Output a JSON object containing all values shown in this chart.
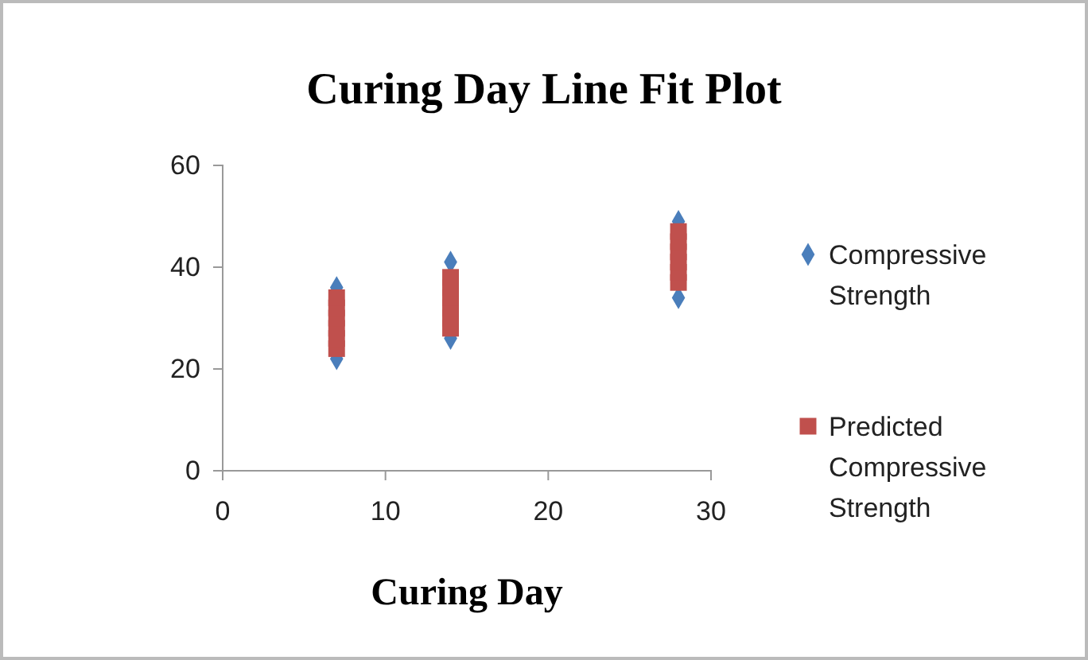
{
  "chart_data": {
    "type": "scatter",
    "title": "Curing Day Line Fit Plot",
    "xlabel": "Curing Day",
    "xlim": [
      0,
      30
    ],
    "xticks": [
      0,
      10,
      20,
      30
    ],
    "ylim": [
      0,
      60
    ],
    "yticks": [
      0,
      20,
      40,
      60
    ],
    "grid": false,
    "legend": "right",
    "series": [
      {
        "name": "Compressive Strength",
        "color": "#4a7ebb",
        "marker": "diamond",
        "x": [
          7,
          7,
          14,
          14,
          28,
          28
        ],
        "values": [
          22,
          36,
          26,
          41,
          34,
          49
        ]
      },
      {
        "name": "Predicted Compressive Strength",
        "color": "#c0504d",
        "marker": "square",
        "x": [
          7,
          7,
          7,
          7,
          7,
          7,
          14,
          14,
          14,
          14,
          14,
          14,
          28,
          28,
          28,
          28,
          28,
          28
        ],
        "values": [
          24,
          26,
          28,
          30,
          32,
          34,
          28,
          30,
          32,
          34,
          36,
          38,
          37,
          39,
          41,
          43,
          45,
          47
        ]
      }
    ]
  }
}
